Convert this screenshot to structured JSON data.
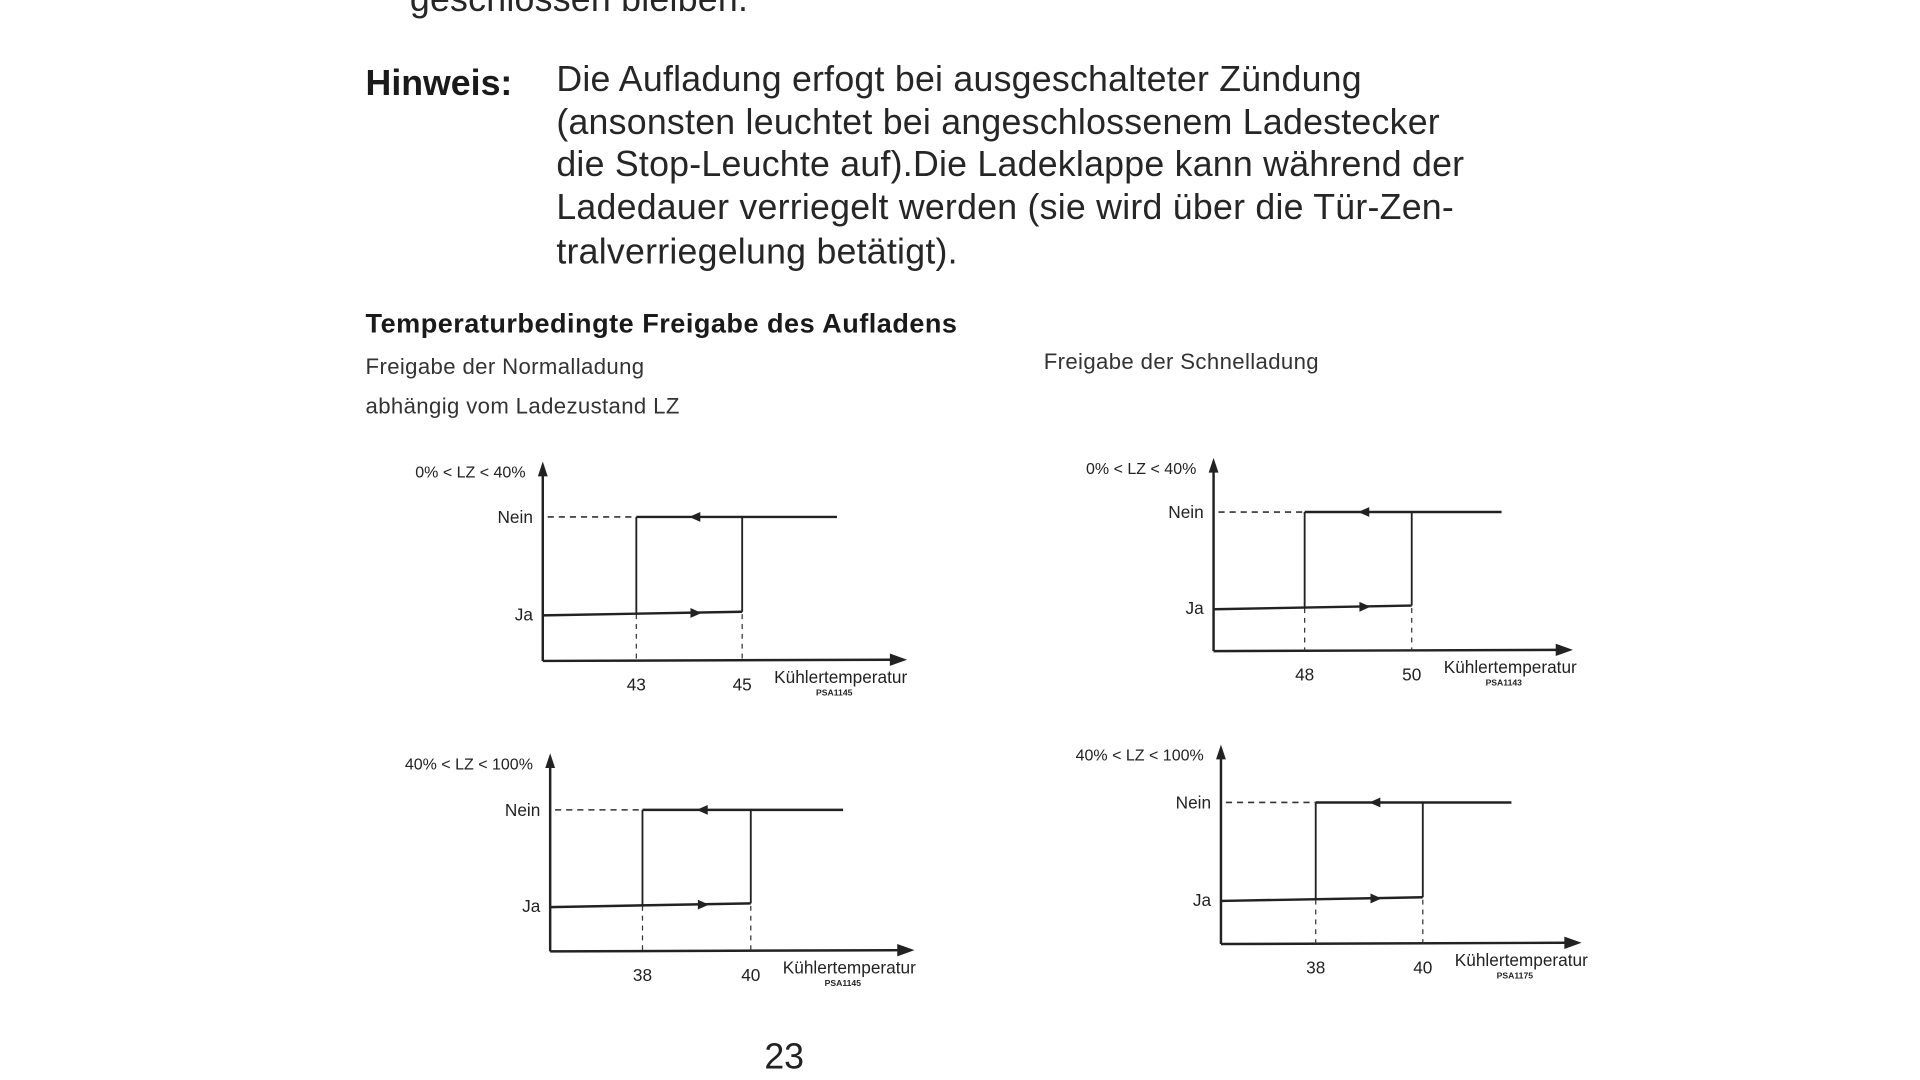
{
  "document": {
    "previous_line": "geschlossen bleiben.",
    "note_label": "Hinweis:",
    "note_lines": [
      "Die Aufladung erfogt bei ausgeschalteter Zündung",
      "(ansonsten leuchtet bei angeschlossenem Ladestecker",
      "die Stop-Leuchte auf).Die Ladeklappe kann während der",
      "Ladedauer verriegelt werden (sie wird über die Tür-Zen-",
      "tralverriegelung betätigt)."
    ],
    "section_title": "Temperaturbedingte Freigabe des Aufladens",
    "left_subtitle_lines": [
      "Freigabe der Normalladung",
      "abhängig vom Ladezustand LZ"
    ],
    "right_subtitle": "Freigabe der Schnelladung",
    "page_number": "23"
  },
  "chart_data": [
    {
      "type": "line",
      "group": "Normalladung",
      "title": "0% < LZ < 40%",
      "y_categories": [
        "Ja",
        "Nein"
      ],
      "xlabel": "Kühlertemperatur",
      "code": "PSA1145",
      "x_ticks": [
        43,
        45
      ],
      "rising_path": {
        "state": "Ja",
        "switch_at": 45,
        "to": "Nein"
      },
      "falling_path": {
        "state": "Nein",
        "switch_at": 43,
        "to": "Ja"
      }
    },
    {
      "type": "line",
      "group": "Schnelladung",
      "title": "0% < LZ < 40%",
      "y_categories": [
        "Ja",
        "Nein"
      ],
      "xlabel": "Kühlertemperatur",
      "code": "PSA1143",
      "x_ticks": [
        48,
        50
      ],
      "rising_path": {
        "state": "Ja",
        "switch_at": 50,
        "to": "Nein"
      },
      "falling_path": {
        "state": "Nein",
        "switch_at": 48,
        "to": "Ja"
      }
    },
    {
      "type": "line",
      "group": "Normalladung",
      "title": "40% < LZ < 100%",
      "y_categories": [
        "Ja",
        "Nein"
      ],
      "xlabel": "Kühlertemperatur",
      "code": "PSA1145",
      "x_ticks": [
        38,
        40
      ],
      "rising_path": {
        "state": "Ja",
        "switch_at": 40,
        "to": "Nein"
      },
      "falling_path": {
        "state": "Nein",
        "switch_at": 38,
        "to": "Ja"
      }
    },
    {
      "type": "line",
      "group": "Schnelladung",
      "title": "40% < LZ < 100%",
      "y_categories": [
        "Ja",
        "Nein"
      ],
      "xlabel": "Kühlertemperatur",
      "code": "PSA1175",
      "x_ticks": [
        38,
        40
      ],
      "rising_path": {
        "state": "Ja",
        "switch_at": 40,
        "to": "Nein"
      },
      "falling_path": {
        "state": "Nein",
        "switch_at": 38,
        "to": "Ja"
      }
    }
  ]
}
